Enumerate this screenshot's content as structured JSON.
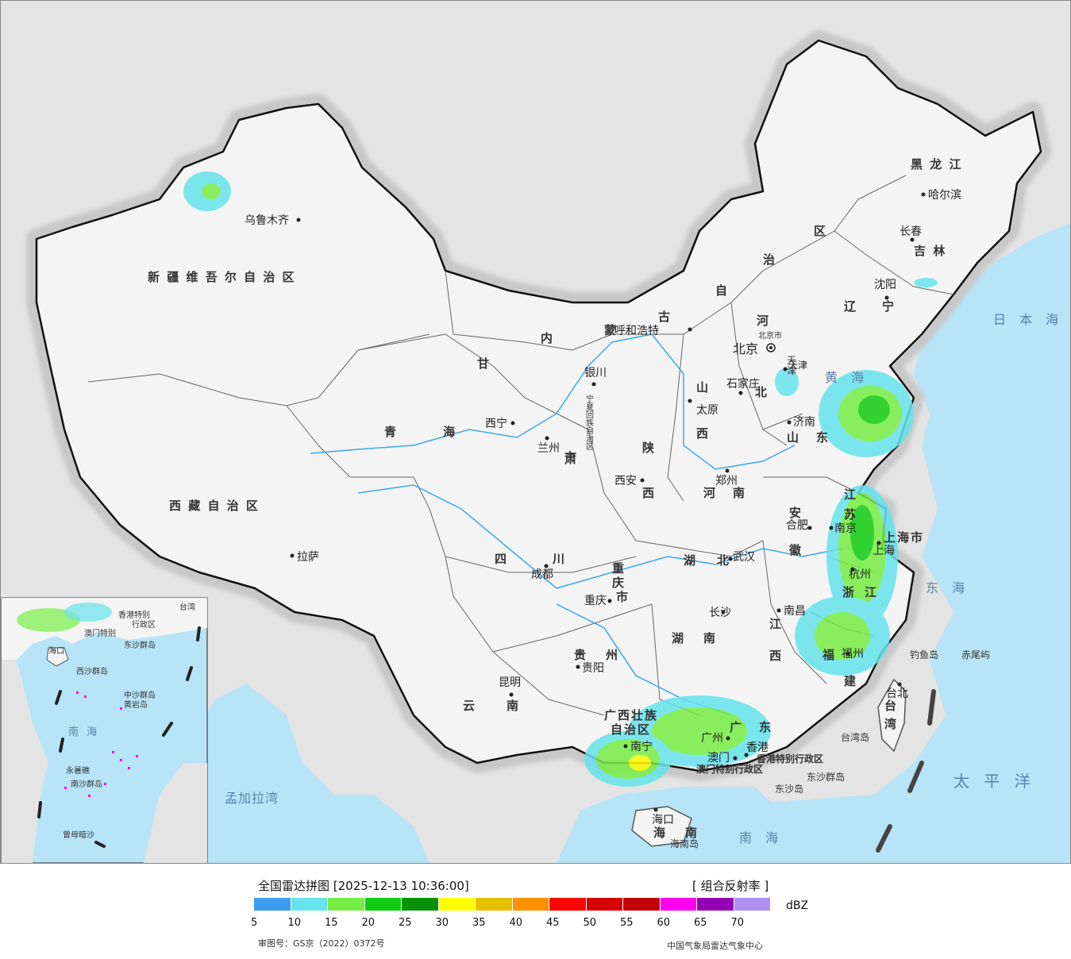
{
  "title": "全国雷达拼图 [2025-12-13 10:36:00]",
  "product": "[ 组合反射率 ]",
  "unit": "dBZ",
  "approval_no": "审图号：GS京（2022）0372号",
  "agency": "中国气象局雷达气象中心",
  "colors": {
    "sea": "#b8e4f8",
    "land_outside": "#e4e4e4",
    "china_land": "#f4f4f4",
    "border": "#111111",
    "river": "#3aa8e8"
  },
  "scale": {
    "ticks": [
      "5",
      "10",
      "15",
      "20",
      "25",
      "30",
      "35",
      "40",
      "45",
      "50",
      "55",
      "60",
      "65",
      "70"
    ],
    "colors": [
      "#3d9cf0",
      "#66e3ec",
      "#77ee44",
      "#11cc11",
      "#079207",
      "#ffff00",
      "#e7c000",
      "#ff9000",
      "#ff0000",
      "#d60000",
      "#c00000",
      "#ff00f0",
      "#9600b4",
      "#ad90f0"
    ]
  },
  "map": {
    "provinces": [
      {
        "name": "新 疆 维 吾 尔 自 治 区"
      },
      {
        "name": "西 藏 自 治 区"
      },
      {
        "name": "青"
      },
      {
        "name": "海"
      },
      {
        "name": "甘"
      },
      {
        "name": "肃"
      },
      {
        "name": "内"
      },
      {
        "name": "蒙"
      },
      {
        "name": "古"
      },
      {
        "name": "自"
      },
      {
        "name": "治"
      },
      {
        "name": "区"
      },
      {
        "name": "黑 龙 江"
      },
      {
        "name": "吉 林"
      },
      {
        "name": "辽"
      },
      {
        "name": "宁"
      },
      {
        "name": "河"
      },
      {
        "name": "北"
      },
      {
        "name": "山"
      },
      {
        "name": "西"
      },
      {
        "name": "陕"
      },
      {
        "name": "西"
      },
      {
        "name": "山"
      },
      {
        "name": "东"
      },
      {
        "name": "河"
      },
      {
        "name": "南"
      },
      {
        "name": "四"
      },
      {
        "name": "川"
      },
      {
        "name": "湖"
      },
      {
        "name": "北"
      },
      {
        "name": "湖"
      },
      {
        "name": "南"
      },
      {
        "name": "安"
      },
      {
        "name": "徽"
      },
      {
        "name": "江"
      },
      {
        "name": "苏"
      },
      {
        "name": "浙"
      },
      {
        "name": "江"
      },
      {
        "name": "江"
      },
      {
        "name": "西"
      },
      {
        "name": "福"
      },
      {
        "name": "建"
      },
      {
        "name": "贵"
      },
      {
        "name": "州"
      },
      {
        "name": "云"
      },
      {
        "name": "南"
      },
      {
        "name": "广西壮族"
      },
      {
        "name": "自治区"
      },
      {
        "name": "广"
      },
      {
        "name": "东"
      },
      {
        "name": "海"
      },
      {
        "name": "南"
      },
      {
        "name": "台"
      },
      {
        "name": "湾"
      },
      {
        "name": "重"
      },
      {
        "name": "庆"
      },
      {
        "name": "市"
      },
      {
        "name": "上海市"
      },
      {
        "name": "天"
      },
      {
        "name": "津"
      },
      {
        "name": "宁夏回族自治区"
      },
      {
        "name": "北京市"
      },
      {
        "name": "市"
      }
    ],
    "cities": [
      {
        "name": "乌鲁木齐"
      },
      {
        "name": "拉萨"
      },
      {
        "name": "西宁"
      },
      {
        "name": "兰州"
      },
      {
        "name": "银川"
      },
      {
        "name": "呼和浩特"
      },
      {
        "name": "北京"
      },
      {
        "name": "天津"
      },
      {
        "name": "石家庄"
      },
      {
        "name": "太原"
      },
      {
        "name": "济南"
      },
      {
        "name": "郑州"
      },
      {
        "name": "西安"
      },
      {
        "name": "成都"
      },
      {
        "name": "重庆"
      },
      {
        "name": "武汉"
      },
      {
        "name": "合肥"
      },
      {
        "name": "南京"
      },
      {
        "name": "上海"
      },
      {
        "name": "杭州"
      },
      {
        "name": "南昌"
      },
      {
        "name": "长沙"
      },
      {
        "name": "福州"
      },
      {
        "name": "贵阳"
      },
      {
        "name": "昆明"
      },
      {
        "name": "南宁"
      },
      {
        "name": "广州"
      },
      {
        "name": "香港"
      },
      {
        "name": "澳门"
      },
      {
        "name": "海口"
      },
      {
        "name": "台北"
      },
      {
        "name": "沈阳"
      },
      {
        "name": "长春"
      },
      {
        "name": "哈尔滨"
      }
    ],
    "seas": [
      {
        "name": "日 本 海"
      },
      {
        "name": "黄 海"
      },
      {
        "name": "东 海"
      },
      {
        "name": "南 海"
      },
      {
        "name": "太 平 洋"
      },
      {
        "name": "孟加拉湾"
      }
    ],
    "islands": [
      {
        "name": "钓鱼岛"
      },
      {
        "name": "赤尾屿"
      },
      {
        "name": "台湾岛"
      },
      {
        "name": "东沙群岛"
      },
      {
        "name": "东沙岛"
      },
      {
        "name": "海南岛"
      }
    ],
    "sar": [
      {
        "name": "香港特别行政区"
      },
      {
        "name": "澳门特别行政区"
      }
    ],
    "inset": {
      "labels": [
        {
          "name": "南 海"
        },
        {
          "name": "中沙群岛"
        },
        {
          "name": "黄岩岛"
        },
        {
          "name": "西沙群岛"
        },
        {
          "name": "南沙群岛"
        },
        {
          "name": "曾母暗沙"
        },
        {
          "name": "东沙群岛"
        },
        {
          "name": "永暑礁"
        },
        {
          "name": "海口"
        },
        {
          "name": "台湾"
        },
        {
          "name": "香港特别"
        },
        {
          "name": "行政区"
        },
        {
          "name": "澳门特别"
        }
      ]
    }
  }
}
